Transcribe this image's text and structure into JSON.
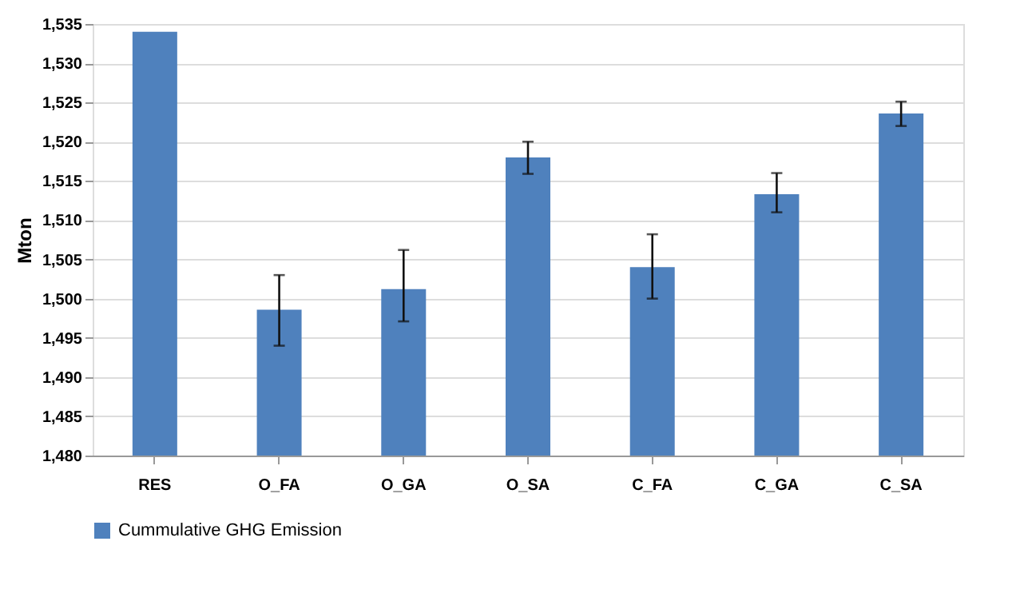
{
  "chart_data": {
    "type": "bar",
    "ylabel": "Mton",
    "categories": [
      "RES",
      "O_FA",
      "O_GA",
      "O_SA",
      "C_FA",
      "C_GA",
      "C_SA"
    ],
    "series": [
      {
        "name": "Cummulative GHG Emission",
        "color": "#4f81bd",
        "values": [
          1534,
          1498.6,
          1501.2,
          1518,
          1504,
          1513.3,
          1523.6
        ],
        "errors": [
          null,
          [
            1494,
            1503
          ],
          [
            1497.1,
            1506.2
          ],
          [
            1515.9,
            1520
          ],
          [
            1500,
            1508.2
          ],
          [
            1511,
            1516
          ],
          [
            1522,
            1525.1
          ]
        ]
      }
    ],
    "ylim": [
      1480,
      1535
    ],
    "yticks": [
      {
        "value": 1480,
        "label": "1,480"
      },
      {
        "value": 1485,
        "label": "1,485"
      },
      {
        "value": 1490,
        "label": "1,490"
      },
      {
        "value": 1495,
        "label": "1,495"
      },
      {
        "value": 1500,
        "label": "1,500"
      },
      {
        "value": 1505,
        "label": "1,505"
      },
      {
        "value": 1510,
        "label": "1,510"
      },
      {
        "value": 1515,
        "label": "1,515"
      },
      {
        "value": 1520,
        "label": "1,520"
      },
      {
        "value": 1525,
        "label": "1,525"
      },
      {
        "value": 1530,
        "label": "1,530"
      },
      {
        "value": 1535,
        "label": "1,535"
      }
    ],
    "grid": "y",
    "legend": "bottom"
  }
}
